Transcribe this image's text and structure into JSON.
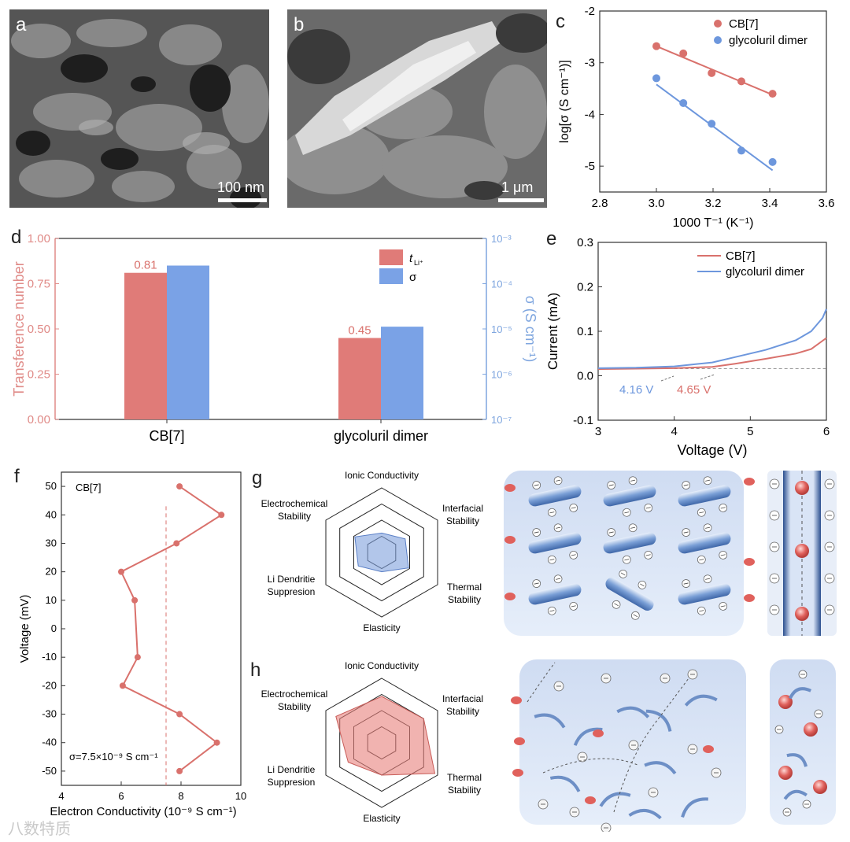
{
  "panels": {
    "a": {
      "label": "a",
      "scale_bar": "100 nm"
    },
    "b": {
      "label": "b",
      "scale_bar": "1 μm"
    },
    "c": {
      "label": "c"
    },
    "d": {
      "label": "d"
    },
    "e": {
      "label": "e"
    },
    "f": {
      "label": "f"
    },
    "g": {
      "label": "g"
    },
    "h": {
      "label": "h"
    }
  },
  "colors": {
    "red": "#d9716c",
    "blue": "#6d97dd",
    "red_bar": "#e07b78",
    "blue_bar": "#7aa2e6",
    "axis_red": "#e08b88",
    "axis_blue": "#7fa6df"
  },
  "chart_data": [
    {
      "id": "c",
      "type": "scatter",
      "xlabel": "1000 T⁻¹ (K⁻¹)",
      "ylabel": "log[σ (S cm⁻¹)]",
      "xlim": [
        2.8,
        3.6
      ],
      "ylim": [
        -5.5,
        -2
      ],
      "xticks": [
        "2.8",
        "3.0",
        "3.2",
        "3.4",
        "3.6"
      ],
      "yticks": [
        "-2",
        "-3",
        "-4",
        "-5"
      ],
      "legend": "top-right",
      "series": [
        {
          "name": "CB[7]",
          "x": [
            3.0,
            3.095,
            3.195,
            3.3,
            3.41
          ],
          "y": [
            -2.68,
            -2.82,
            -3.2,
            -3.36,
            -3.6
          ],
          "fit": [
            [
              3.0,
              -2.68
            ],
            [
              3.41,
              -3.62
            ]
          ]
        },
        {
          "name": "glycoluril dimer",
          "x": [
            3.0,
            3.095,
            3.195,
            3.3,
            3.41
          ],
          "y": [
            -3.3,
            -3.78,
            -4.18,
            -4.7,
            -4.92
          ],
          "fit": [
            [
              3.0,
              -3.42
            ],
            [
              3.41,
              -5.08
            ]
          ]
        }
      ]
    },
    {
      "id": "d",
      "type": "bar",
      "categories": [
        "CB[7]",
        "glycoluril dimer"
      ],
      "ylabel": "Transference number",
      "y2label": "σ (S cm⁻¹)",
      "ylim": [
        0,
        1
      ],
      "yticks": [
        "0.00",
        "0.25",
        "0.50",
        "0.75",
        "1.00"
      ],
      "y2ticks": [
        "10⁻⁷",
        "10⁻⁶",
        "10⁻⁵",
        "10⁻⁴",
        "10⁻³"
      ],
      "y2lim_log": [
        -7,
        -3
      ],
      "legend": "top-right",
      "legend_t": "t",
      "legend_t_sub": "Li⁺",
      "legend_sigma": "σ",
      "series": [
        {
          "name": "tLi+",
          "values": [
            0.81,
            0.45
          ],
          "labels": [
            "0.81",
            "0.45"
          ]
        },
        {
          "name": "σ",
          "log_values": [
            -3.6,
            -4.95
          ]
        }
      ]
    },
    {
      "id": "e",
      "type": "line",
      "xlabel": "Voltage (V)",
      "ylabel": "Current (mA)",
      "xlim": [
        3,
        6
      ],
      "ylim": [
        -0.1,
        0.3
      ],
      "xticks": [
        "3",
        "4",
        "5",
        "6"
      ],
      "yticks": [
        "0.3",
        "0.2",
        "0.1",
        "0.0",
        "-0.1"
      ],
      "legend": "top-right",
      "annotations": [
        "4.16 V",
        "4.65 V"
      ],
      "series": [
        {
          "name": "CB[7]",
          "x": [
            3.0,
            3.5,
            4.0,
            4.5,
            4.8,
            5.2,
            5.6,
            5.8,
            6.0
          ],
          "y": [
            0.015,
            0.016,
            0.017,
            0.02,
            0.027,
            0.038,
            0.05,
            0.06,
            0.085
          ]
        },
        {
          "name": "glycoluril dimer",
          "x": [
            3.0,
            3.5,
            4.0,
            4.5,
            4.8,
            5.2,
            5.6,
            5.8,
            5.95,
            6.0
          ],
          "y": [
            0.017,
            0.018,
            0.021,
            0.03,
            0.042,
            0.058,
            0.08,
            0.1,
            0.13,
            0.15
          ]
        }
      ]
    },
    {
      "id": "f",
      "type": "line",
      "xlabel": "Electron Conductivity (10⁻⁹ S cm⁻¹)",
      "ylabel": "Voltage (mV)",
      "xlim": [
        4,
        10
      ],
      "ylim": [
        -55,
        55
      ],
      "xticks": [
        "4",
        "6",
        "8",
        "10"
      ],
      "yticks": [
        "50",
        "40",
        "30",
        "20",
        "10",
        "0",
        "-10",
        "-20",
        "-30",
        "-40",
        "-50"
      ],
      "inset_title": "CB[7]",
      "annotation": "σ=7.5×10⁻⁹ S cm⁻¹",
      "mean_x": 7.5,
      "series": [
        {
          "name": "CB[7]",
          "x": [
            7.95,
            9.35,
            7.85,
            6.0,
            6.45,
            6.55,
            6.05,
            7.95,
            9.2,
            7.95
          ],
          "y": [
            50,
            40,
            30,
            20,
            10,
            -10,
            -20,
            -30,
            -40,
            -50
          ]
        }
      ]
    }
  ],
  "radar_axes": [
    "Ionic Conductivity",
    "Interfacial Stability",
    "Thermal Stability",
    "Elasticity",
    "Li Dendritie Suppresion",
    "Electrochemical Stability"
  ],
  "radar_g": [
    0.3,
    0.42,
    0.48,
    0.3,
    0.42,
    0.48
  ],
  "radar_h": [
    0.72,
    0.75,
    0.95,
    0.5,
    0.6,
    0.82
  ],
  "watermark": "八数特质"
}
